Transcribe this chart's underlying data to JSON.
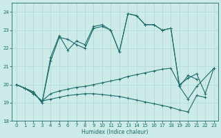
{
  "xlabel": "Humidex (Indice chaleur)",
  "xlim": [
    -0.5,
    23.5
  ],
  "ylim": [
    18,
    24.5
  ],
  "yticks": [
    18,
    19,
    20,
    21,
    22,
    23,
    24
  ],
  "xticks": [
    0,
    1,
    2,
    3,
    4,
    5,
    6,
    7,
    8,
    9,
    10,
    11,
    12,
    13,
    14,
    15,
    16,
    17,
    18,
    19,
    20,
    21,
    22,
    23
  ],
  "background_color": "#cceae7",
  "grid_color": "#b0d8d4",
  "line_color": "#1a6b6b",
  "lineA_x": [
    0,
    1,
    2,
    3,
    4,
    5,
    6,
    7,
    8,
    9,
    10,
    11,
    12,
    13,
    14,
    15,
    16,
    17,
    18,
    19,
    20,
    21
  ],
  "lineA_y": [
    20.0,
    19.8,
    19.6,
    19.0,
    21.5,
    22.7,
    21.9,
    22.4,
    22.2,
    23.2,
    23.3,
    23.0,
    21.8,
    23.9,
    23.8,
    23.3,
    23.3,
    23.0,
    23.1,
    19.9,
    20.5,
    20.3
  ],
  "lineB_x": [
    0,
    1,
    2,
    3,
    4,
    5,
    6,
    7,
    8,
    9,
    10,
    11,
    12,
    13,
    14,
    15,
    16,
    17,
    18,
    19,
    20,
    21,
    23
  ],
  "lineB_y": [
    20.0,
    19.8,
    19.6,
    19.0,
    21.3,
    22.6,
    22.5,
    22.2,
    22.0,
    23.1,
    23.2,
    23.0,
    21.8,
    23.9,
    23.8,
    23.3,
    23.3,
    23.0,
    23.1,
    19.9,
    19.2,
    19.9,
    20.9
  ],
  "lineC_x": [
    0,
    1,
    2,
    3,
    4,
    5,
    6,
    7,
    8,
    9,
    10,
    11,
    12,
    13,
    14,
    15,
    16,
    17,
    18,
    19,
    20,
    21,
    22,
    23
  ],
  "lineC_y": [
    20.0,
    19.8,
    19.5,
    19.1,
    19.5,
    19.65,
    19.75,
    19.85,
    19.9,
    20.0,
    20.1,
    20.2,
    20.3,
    20.45,
    20.55,
    20.65,
    20.75,
    20.85,
    20.9,
    20.0,
    20.35,
    20.6,
    19.5,
    20.9
  ],
  "lineD_x": [
    0,
    1,
    2,
    3,
    4,
    5,
    6,
    7,
    8,
    9,
    10,
    11,
    12,
    13,
    14,
    15,
    16,
    17,
    18,
    19,
    20,
    21,
    22
  ],
  "lineD_y": [
    20.0,
    19.8,
    19.5,
    19.1,
    19.2,
    19.3,
    19.4,
    19.45,
    19.5,
    19.5,
    19.45,
    19.4,
    19.35,
    19.25,
    19.15,
    19.05,
    18.95,
    18.85,
    18.75,
    18.6,
    18.5,
    19.4,
    19.3
  ]
}
